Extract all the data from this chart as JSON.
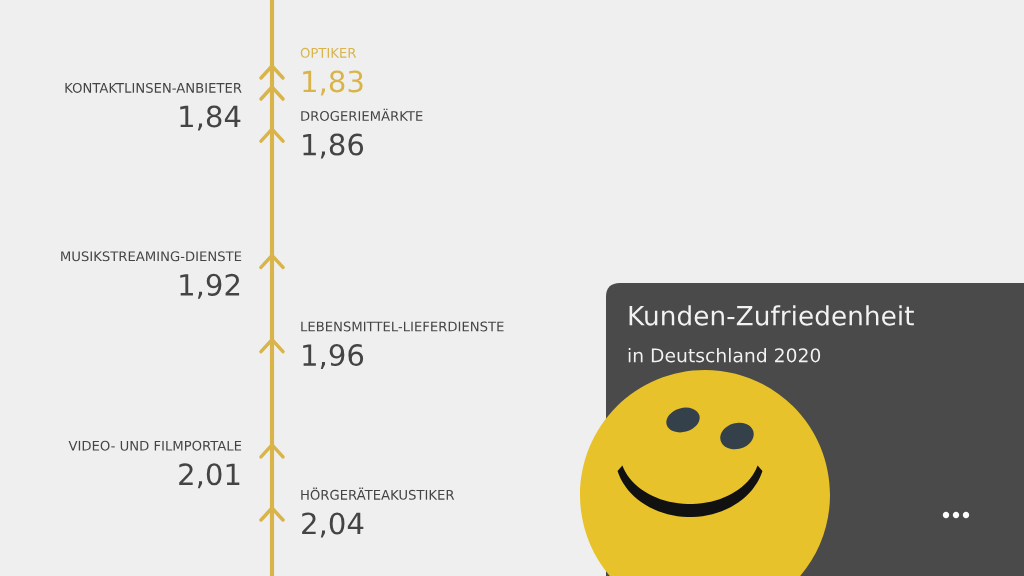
{
  "chart_data": {
    "type": "other",
    "title": "Kunden-Zufriedenheit",
    "subtitle": "in Deutschland 2020",
    "categories": [
      "OPTIKER",
      "KONTAKTLINSEN-ANBIETER",
      "DROGERIEMÄRKTE",
      "MUSIKSTREAMING-DIENSTE",
      "LEBENSMITTEL-LIEFERDIENSTE",
      "VIDEO- UND FILMPORTALE",
      "HÖRGERÄTEAKUSTIKER"
    ],
    "values": [
      1.83,
      1.84,
      1.86,
      1.92,
      1.96,
      2.01,
      2.04
    ],
    "value_labels": [
      "1,83",
      "1,84",
      "1,86",
      "1,92",
      "1,96",
      "2,01",
      "2,04"
    ],
    "color": "#d9b44a",
    "colors": [
      "#d9b44a",
      "#444444",
      "#444444",
      "#444444",
      "#444444",
      "#444444",
      "#444444"
    ]
  }
}
